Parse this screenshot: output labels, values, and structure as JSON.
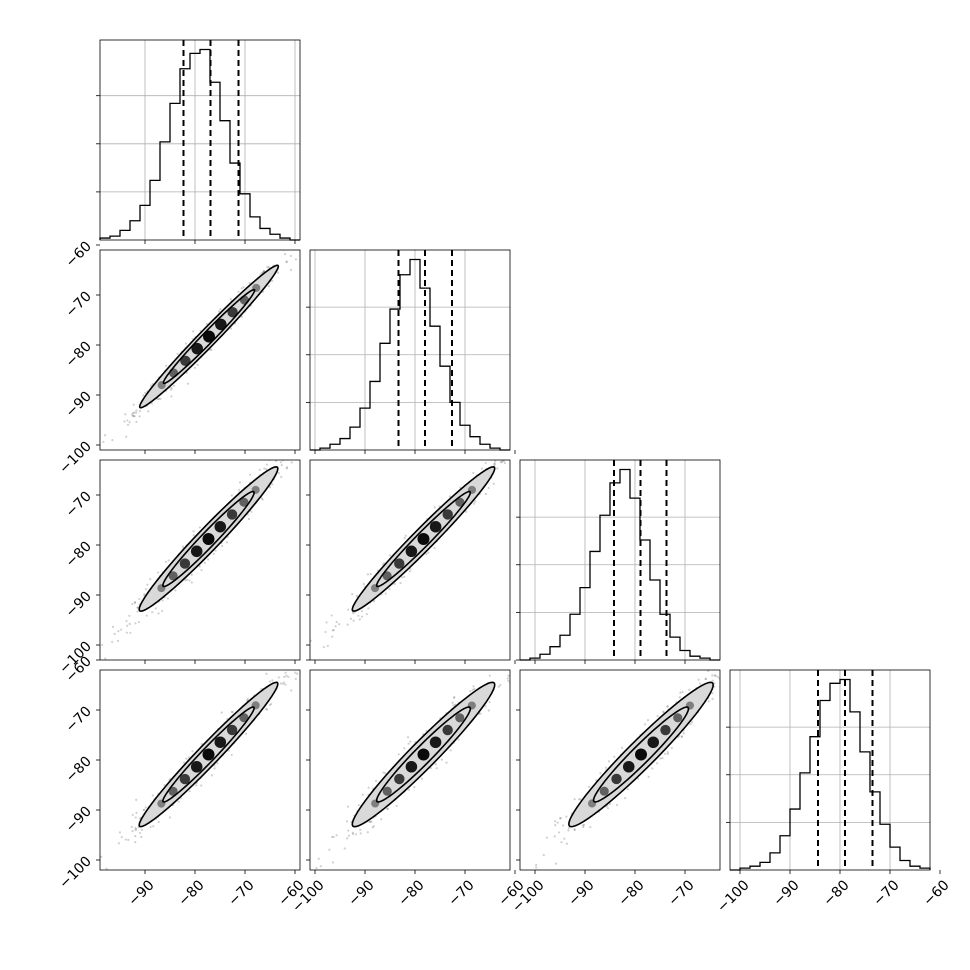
{
  "chart_data": {
    "type": "corner",
    "title": "",
    "n_params": 4,
    "params": [
      "",
      "",
      "",
      ""
    ],
    "x_ticks": {
      "p0": [
        -90,
        -80,
        -70,
        -60
      ],
      "p1": [
        -100,
        -90,
        -80,
        -70,
        -60
      ],
      "p2": [
        -100,
        -90,
        -80,
        -70
      ],
      "p3": [
        -100,
        -90,
        -80,
        -70,
        -60
      ]
    },
    "x_tick_labels": {
      "p0": [
        "−90",
        "−80",
        "−70",
        "−60"
      ],
      "p1": [
        "−100",
        "−90",
        "−80",
        "−70",
        "−60"
      ],
      "p2": [
        "−100",
        "−90",
        "−80",
        "−70"
      ],
      "p3": [
        "−100",
        "−90",
        "−80",
        "−70",
        "−60"
      ]
    },
    "y_ticks": {
      "row1": [
        -100,
        -90,
        -80,
        -70,
        -60
      ],
      "row2": [
        -100,
        -90,
        -80,
        -70
      ],
      "row3": [
        -100,
        -90,
        -80,
        -70,
        -60
      ]
    },
    "y_tick_labels": {
      "row1": [
        "−100",
        "−90",
        "−80",
        "−70",
        "−60"
      ],
      "row2": [
        "−100",
        "−90",
        "−80",
        "−70"
      ],
      "row3": [
        "−100",
        "−90",
        "−80",
        "−70",
        "−60"
      ]
    },
    "ranges": [
      [
        -99,
        -59
      ],
      [
        -101,
        -61
      ],
      [
        -103,
        -63
      ],
      [
        -102,
        -62
      ]
    ],
    "quantiles": [
      [
        -82.3,
        -76.9,
        -71.3
      ],
      [
        -83.3,
        -78.0,
        -72.6
      ],
      [
        -84.2,
        -78.9,
        -73.7
      ],
      [
        -84.4,
        -79.0,
        -73.5
      ]
    ],
    "histograms": {
      "bin_edges": [
        [
          -99,
          -97,
          -95,
          -93,
          -91,
          -89,
          -87,
          -85,
          -83,
          -81,
          -79,
          -77,
          -75,
          -73,
          -71,
          -69,
          -67,
          -65,
          -63,
          -61,
          -59
        ],
        [
          -101,
          -99,
          -97,
          -95,
          -93,
          -91,
          -89,
          -87,
          -85,
          -83,
          -81,
          -79,
          -77,
          -75,
          -73,
          -71,
          -69,
          -67,
          -65,
          -63,
          -61
        ],
        [
          -103,
          -101,
          -99,
          -97,
          -95,
          -93,
          -91,
          -89,
          -87,
          -85,
          -83,
          -81,
          -79,
          -77,
          -75,
          -73,
          -71,
          -69,
          -67,
          -65,
          -63
        ],
        [
          -102,
          -100,
          -98,
          -96,
          -94,
          -92,
          -90,
          -88,
          -86,
          -84,
          -82,
          -80,
          -78,
          -76,
          -74,
          -72,
          -70,
          -68,
          -66,
          -64,
          -62
        ]
      ],
      "counts": [
        [
          1,
          2,
          5,
          10,
          18,
          31,
          51,
          71,
          89,
          97,
          99,
          82,
          62,
          40,
          24,
          12,
          6,
          3,
          1,
          0
        ],
        [
          0,
          1,
          3,
          6,
          12,
          22,
          36,
          56,
          74,
          92,
          100,
          85,
          65,
          44,
          25,
          13,
          7,
          3,
          1,
          0
        ],
        [
          0,
          1,
          3,
          7,
          13,
          24,
          38,
          57,
          76,
          93,
          100,
          85,
          63,
          42,
          24,
          12,
          5,
          2,
          1,
          0
        ],
        [
          0,
          1,
          2,
          4,
          9,
          18,
          32,
          51,
          70,
          89,
          98,
          100,
          83,
          62,
          41,
          24,
          12,
          5,
          2,
          1
        ]
      ],
      "y_ticks": [
        25,
        50,
        75
      ]
    },
    "pairs": [
      {
        "x": 0,
        "y": 1,
        "center": [
          -77.2,
          -78.3
        ],
        "sd": [
          7.3,
          7.5
        ],
        "corr": 0.985
      },
      {
        "x": 0,
        "y": 2,
        "center": [
          -77.3,
          -78.8
        ],
        "sd": [
          7.3,
          7.6
        ],
        "corr": 0.975
      },
      {
        "x": 1,
        "y": 2,
        "center": [
          -78.3,
          -78.8
        ],
        "sd": [
          7.5,
          7.6
        ],
        "corr": 0.978
      },
      {
        "x": 0,
        "y": 3,
        "center": [
          -77.3,
          -78.9
        ],
        "sd": [
          7.3,
          7.6
        ],
        "corr": 0.978
      },
      {
        "x": 1,
        "y": 3,
        "center": [
          -78.3,
          -78.9
        ],
        "sd": [
          7.5,
          7.6
        ],
        "corr": 0.966
      },
      {
        "x": 2,
        "y": 3,
        "center": [
          -78.8,
          -78.9
        ],
        "sd": [
          7.6,
          7.6
        ],
        "corr": 0.964
      }
    ],
    "grid": true,
    "colors": {
      "line": "#000000",
      "grid": "#b0b0b0",
      "contour_fill": "#d9d9d9",
      "points": "#555555"
    }
  }
}
